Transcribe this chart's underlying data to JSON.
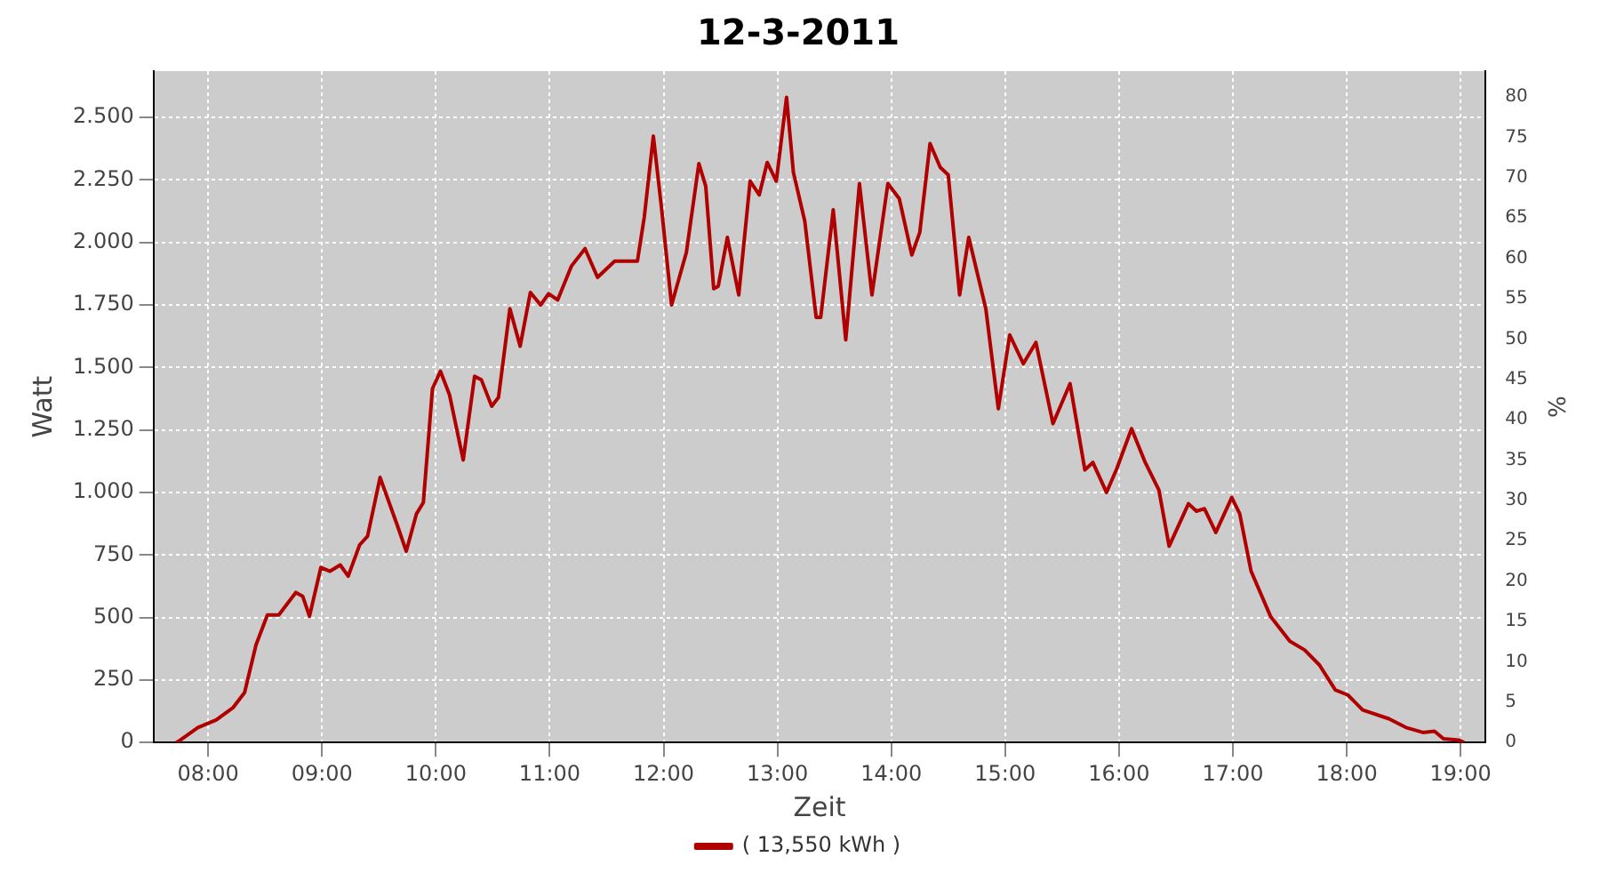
{
  "chart_data": {
    "type": "line",
    "title": "12-3-2011",
    "xlabel": "Zeit",
    "ylabel": "Watt",
    "y2label": "%",
    "series": [
      {
        "name": "( 13,550 kWh )",
        "color": "#b00000",
        "x": [
          7.72,
          7.74,
          7.91,
          8.07,
          8.22,
          8.32,
          8.42,
          8.52,
          8.62,
          8.77,
          8.83,
          8.89,
          8.99,
          9.07,
          9.16,
          9.23,
          9.33,
          9.4,
          9.51,
          9.66,
          9.74,
          9.83,
          9.89,
          9.97,
          10.04,
          10.12,
          10.24,
          10.34,
          10.4,
          10.49,
          10.55,
          10.65,
          10.74,
          10.83,
          10.92,
          10.99,
          11.07,
          11.19,
          11.31,
          11.42,
          11.57,
          11.77,
          11.83,
          11.91,
          11.98,
          12.07,
          12.2,
          12.31,
          12.37,
          12.44,
          12.48,
          12.56,
          12.66,
          12.76,
          12.84,
          12.91,
          12.99,
          13.08,
          13.14,
          13.24,
          13.34,
          13.38,
          13.49,
          13.6,
          13.72,
          13.83,
          13.97,
          14.07,
          14.18,
          14.25,
          14.34,
          14.43,
          14.5,
          14.6,
          14.68,
          14.83,
          14.94,
          15.04,
          15.16,
          15.27,
          15.42,
          15.57,
          15.7,
          15.77,
          15.89,
          15.98,
          16.11,
          16.23,
          16.35,
          16.44,
          16.61,
          16.68,
          16.75,
          16.85,
          16.99,
          17.06,
          17.16,
          17.33,
          17.5,
          17.63,
          17.76,
          17.9,
          18.01,
          18.14,
          18.37,
          18.52,
          18.67,
          18.77,
          18.85,
          18.98,
          19.03
        ],
        "values": [
          0,
          5,
          60,
          90,
          140,
          200,
          390,
          510,
          510,
          600,
          585,
          505,
          700,
          685,
          710,
          665,
          790,
          825,
          1060,
          870,
          765,
          915,
          960,
          1415,
          1485,
          1390,
          1130,
          1465,
          1450,
          1345,
          1380,
          1735,
          1585,
          1800,
          1750,
          1795,
          1770,
          1905,
          1975,
          1860,
          1925,
          1925,
          2100,
          2425,
          2145,
          1750,
          1960,
          2315,
          2225,
          1815,
          1825,
          2020,
          1790,
          2245,
          2190,
          2320,
          2245,
          2580,
          2280,
          2085,
          1700,
          1700,
          2130,
          1610,
          2235,
          1790,
          2235,
          2175,
          1950,
          2040,
          2395,
          2300,
          2270,
          1790,
          2020,
          1735,
          1335,
          1630,
          1515,
          1600,
          1275,
          1435,
          1090,
          1120,
          1000,
          1095,
          1255,
          1120,
          1010,
          785,
          955,
          925,
          935,
          840,
          980,
          915,
          685,
          505,
          405,
          370,
          310,
          210,
          190,
          130,
          95,
          60,
          40,
          45,
          15,
          10,
          0
        ]
      }
    ],
    "xlim": [
      7.52,
      19.22
    ],
    "xticks": [
      {
        "value": 8,
        "label": "08:00"
      },
      {
        "value": 9,
        "label": "09:00"
      },
      {
        "value": 10,
        "label": "10:00"
      },
      {
        "value": 11,
        "label": "11:00"
      },
      {
        "value": 12,
        "label": "12:00"
      },
      {
        "value": 13,
        "label": "13:00"
      },
      {
        "value": 14,
        "label": "14:00"
      },
      {
        "value": 15,
        "label": "15:00"
      },
      {
        "value": 16,
        "label": "16:00"
      },
      {
        "value": 17,
        "label": "17:00"
      },
      {
        "value": 18,
        "label": "18:00"
      },
      {
        "value": 19,
        "label": "19:00"
      }
    ],
    "ylim": [
      0,
      2685
    ],
    "yticks": [
      0,
      250,
      500,
      750,
      {
        "value": 1000,
        "label": "1.000"
      },
      {
        "value": 1250,
        "label": "1.250"
      },
      {
        "value": 1500,
        "label": "1.500"
      },
      {
        "value": 1750,
        "label": "1.750"
      },
      {
        "value": 2000,
        "label": "2.000"
      },
      {
        "value": 2250,
        "label": "2.250"
      },
      {
        "value": 2500,
        "label": "2.500"
      }
    ],
    "y2lim": [
      0,
      83.2
    ],
    "y2ticks": [
      0,
      5,
      10,
      15,
      20,
      25,
      30,
      35,
      40,
      45,
      50,
      55,
      60,
      65,
      70,
      75,
      80
    ],
    "grid": true,
    "legend": "bottom",
    "marker": "none",
    "line_style": "solid"
  }
}
